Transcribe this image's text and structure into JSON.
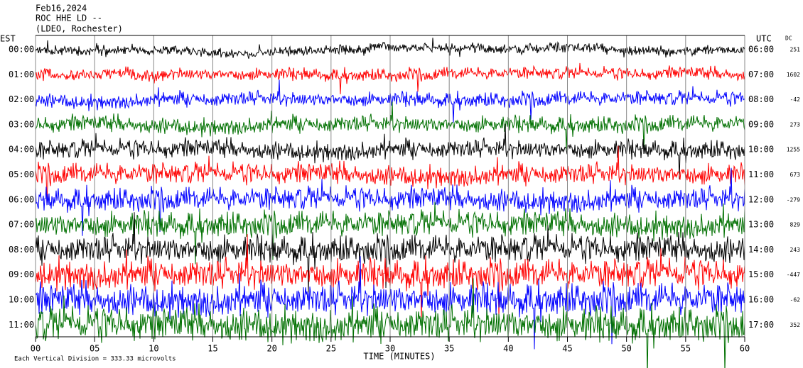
{
  "header": {
    "date": "Feb16,2024",
    "station": "ROC HHE LD --",
    "location": "(LDEO, Rochester)"
  },
  "axes": {
    "left_title": "EST",
    "right_title": "UTC",
    "dc_title": "DC",
    "x_title": "TIME (MINUTES)",
    "left_labels": [
      "00:00",
      "01:00",
      "02:00",
      "03:00",
      "04:00",
      "05:00",
      "06:00",
      "07:00",
      "08:00",
      "09:00",
      "10:00",
      "11:00"
    ],
    "right_labels": [
      "06:00",
      "07:00",
      "08:00",
      "09:00",
      "10:00",
      "11:00",
      "12:00",
      "13:00",
      "14:00",
      "15:00",
      "16:00",
      "17:00"
    ],
    "dc_values": [
      251,
      1602,
      -42,
      273,
      1255,
      673,
      -279,
      829,
      243,
      -447,
      -62,
      352
    ],
    "x_labels": [
      "00",
      "05",
      "10",
      "15",
      "20",
      "25",
      "30",
      "35",
      "40",
      "45",
      "50",
      "55",
      "60"
    ]
  },
  "trace_colors": [
    "#000000",
    "#ff0000",
    "#0000ff",
    "#007000"
  ],
  "footer": {
    "scale_note": "Each Vertical Division =  333.33 microvolts"
  }
}
